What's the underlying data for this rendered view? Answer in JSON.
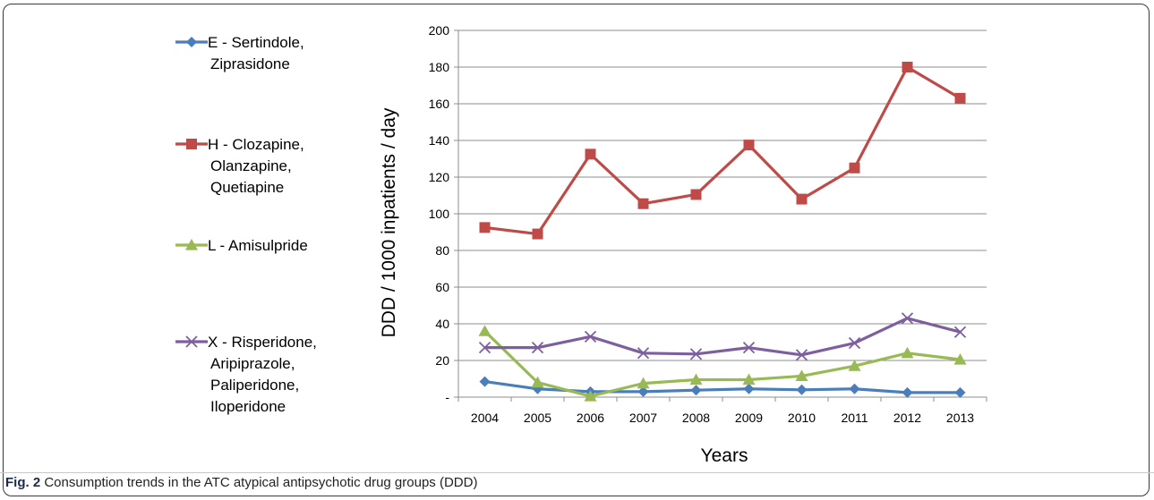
{
  "figure": {
    "caption_label": "Fig. 2",
    "caption_text": "Consumption trends in the ATC atypical antipsychotic drug groups (DDD)"
  },
  "chart_data": {
    "type": "line",
    "title": "",
    "xlabel": "Years",
    "ylabel": "DDD / 1000 inpatients / day",
    "x": [
      "2004",
      "2005",
      "2006",
      "2007",
      "2008",
      "2009",
      "2010",
      "2011",
      "2012",
      "2013"
    ],
    "ylim": [
      0,
      200
    ],
    "yticks": [
      0,
      20,
      40,
      60,
      80,
      100,
      120,
      140,
      160,
      180,
      200
    ],
    "ytick_labels": [
      "-",
      "20",
      "40",
      "60",
      "80",
      "100",
      "120",
      "140",
      "160",
      "180",
      "200"
    ],
    "grid": "horizontal",
    "legend_position": "left",
    "series": [
      {
        "name_lines": [
          "E - Sertindole,",
          "Ziprasidone"
        ],
        "color": "#4a7ebb",
        "marker": "diamond",
        "values": [
          8.5,
          4.5,
          3,
          3,
          3.8,
          4.5,
          4,
          4.5,
          2.5,
          2.5
        ]
      },
      {
        "name_lines": [
          "H - Clozapine,",
          "Olanzapine,",
          "Quetiapine"
        ],
        "color": "#be4b48",
        "marker": "square",
        "values": [
          92.5,
          89,
          132.5,
          105.5,
          110.5,
          137.5,
          108,
          125,
          180,
          163
        ]
      },
      {
        "name_lines": [
          "L - Amisulpride"
        ],
        "color": "#98b954",
        "marker": "triangle",
        "values": [
          36,
          8,
          0.5,
          7.5,
          9.5,
          9.5,
          11.5,
          17,
          24,
          20.5
        ]
      },
      {
        "name_lines": [
          "X - Risperidone,",
          "Aripiprazole,",
          "Paliperidone,",
          "Iloperidone"
        ],
        "color": "#7d5fa0",
        "marker": "x",
        "values": [
          27,
          27,
          33,
          24,
          23.5,
          27,
          23,
          29.5,
          43,
          35.5
        ]
      }
    ]
  }
}
